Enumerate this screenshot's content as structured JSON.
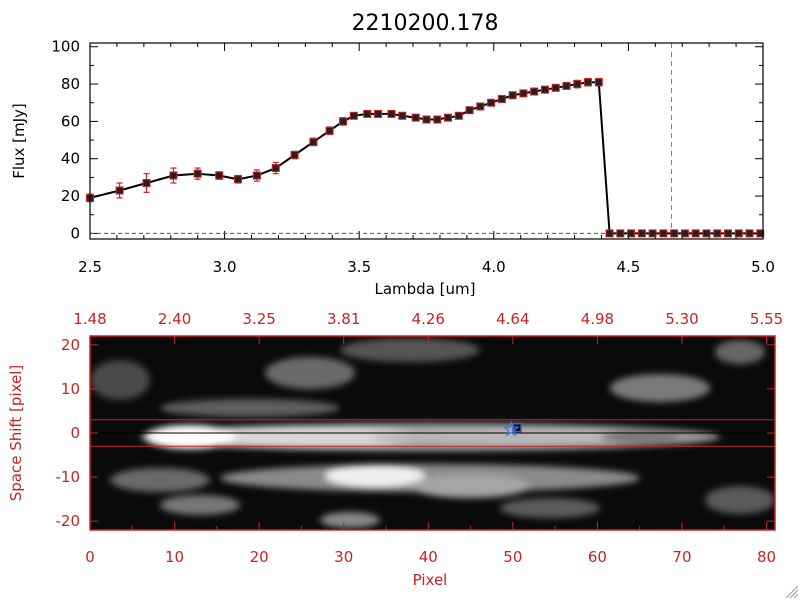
{
  "title": "2210200.178",
  "colors": {
    "axis": "#000000",
    "accent_red": "#cc2222",
    "marker_fill": "#222222",
    "dashed_line": "#3399cc",
    "image_bg": "#0a0a0a"
  },
  "chart_data": [
    {
      "type": "line",
      "title": "2210200.178",
      "xlabel": "Lambda [um]",
      "ylabel": "Flux [mJy]",
      "xlim": [
        2.5,
        5.0
      ],
      "ylim": [
        -3,
        102
      ],
      "x_ticks": [
        "2.5",
        "3.0",
        "3.5",
        "4.0",
        "4.5",
        "5.0"
      ],
      "y_ticks": [
        "0",
        "20",
        "40",
        "60",
        "80",
        "100"
      ],
      "vertical_marker": {
        "x": 4.66,
        "style": "dashed",
        "color": "#3399cc"
      },
      "zero_line": {
        "y": 0,
        "style": "dashed",
        "color": "#cc2222"
      },
      "series": [
        {
          "x": [
            2.5,
            2.61,
            2.71,
            2.81,
            2.9,
            2.98,
            3.05,
            3.12,
            3.19,
            3.26,
            3.33,
            3.39,
            3.44,
            3.48,
            3.53,
            3.57,
            3.62,
            3.66,
            3.71,
            3.75,
            3.79,
            3.83,
            3.87,
            3.91,
            3.95,
            3.99,
            4.03,
            4.07,
            4.11,
            4.15,
            4.19,
            4.23,
            4.27,
            4.31,
            4.35,
            4.39,
            4.43,
            4.47,
            4.51,
            4.55,
            4.59,
            4.63,
            4.67,
            4.71,
            4.75,
            4.79,
            4.83,
            4.87,
            4.91,
            4.95,
            4.99
          ],
          "y": [
            19,
            23,
            27,
            31,
            32,
            31,
            29,
            31,
            35,
            42,
            49,
            55,
            60,
            63,
            64,
            64,
            64,
            63,
            62,
            61,
            61,
            62,
            63,
            66,
            68,
            70,
            72,
            74,
            75,
            76,
            77,
            78,
            79,
            80,
            81,
            81,
            0,
            0,
            0,
            0,
            0,
            0,
            0,
            0,
            0,
            0,
            0,
            0,
            0,
            0,
            0
          ],
          "err": [
            2,
            4,
            5,
            4,
            3,
            2,
            2,
            3,
            3,
            2,
            2,
            2,
            2,
            1,
            1,
            1,
            1,
            1,
            1,
            1,
            1,
            1,
            1,
            1,
            1,
            1,
            1,
            1,
            1,
            1,
            1,
            1,
            1,
            2,
            2,
            2,
            0,
            0,
            0,
            0,
            0,
            0,
            0,
            0,
            0,
            0,
            0,
            0,
            0,
            0,
            0
          ]
        }
      ]
    },
    {
      "type": "heatmap",
      "xlabel": "Pixel",
      "ylabel": "Space Shift [pixel]",
      "xlim": [
        0,
        81
      ],
      "ylim": [
        -22,
        22
      ],
      "x_ticks": [
        "0",
        "10",
        "20",
        "30",
        "40",
        "50",
        "60",
        "70",
        "80"
      ],
      "y_ticks": [
        "-20",
        "-10",
        "0",
        "10",
        "20"
      ],
      "top_ticks": [
        "1.48",
        "2.40",
        "3.25",
        "3.81",
        "4.26",
        "4.64",
        "4.98",
        "5.30",
        "5.55"
      ],
      "extraction_band": [
        -3,
        3
      ],
      "trace_y": 0,
      "star_marker": {
        "x": 49.8,
        "y": 0.8
      },
      "square_marker": {
        "x": 50.5,
        "y": 1.2
      }
    }
  ]
}
